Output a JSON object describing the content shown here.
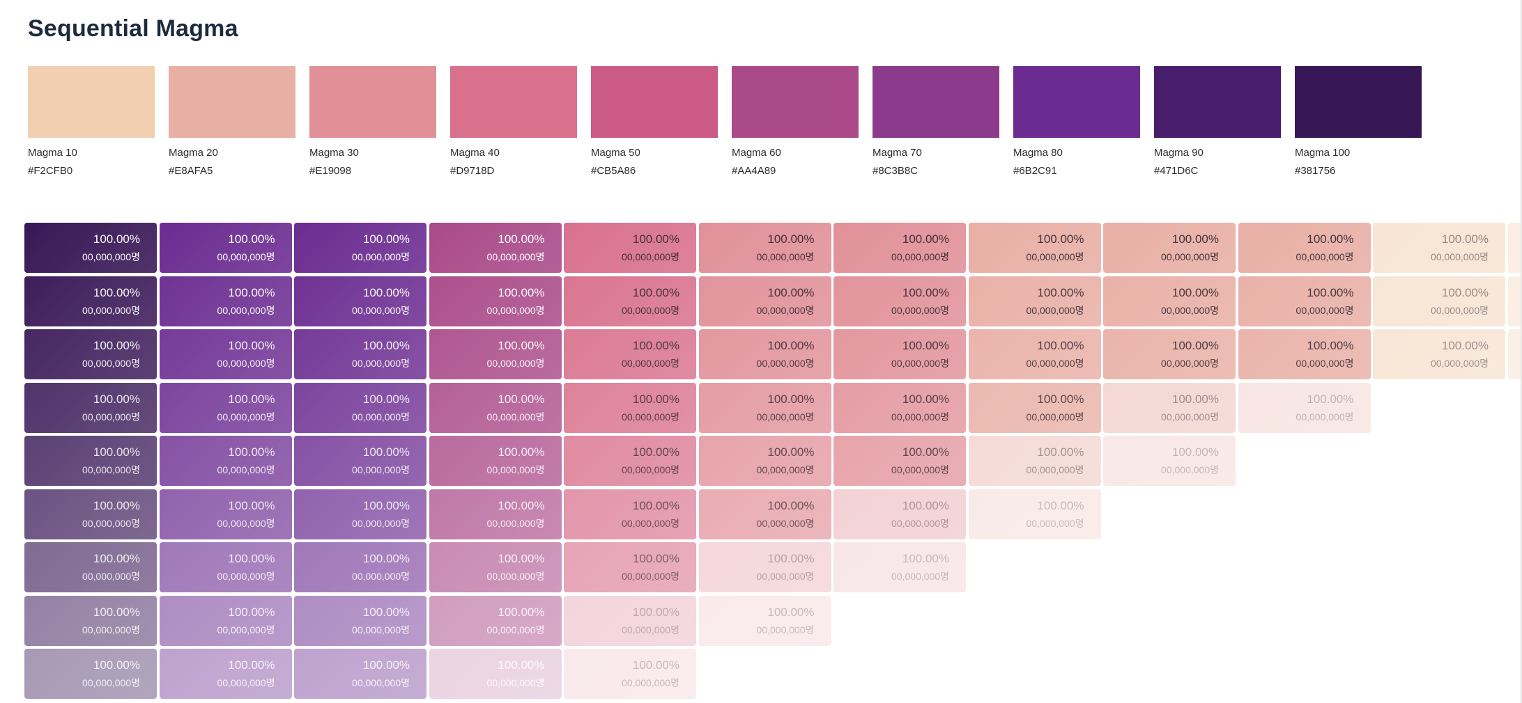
{
  "title": "Sequential Magma",
  "swatches": [
    {
      "name": "Magma 10",
      "hex": "#F2CFB0"
    },
    {
      "name": "Magma 20",
      "hex": "#E8AFA5"
    },
    {
      "name": "Magma 30",
      "hex": "#E19098"
    },
    {
      "name": "Magma 40",
      "hex": "#D9718D"
    },
    {
      "name": "Magma 50",
      "hex": "#CB5A86"
    },
    {
      "name": "Magma 60",
      "hex": "#AA4A89"
    },
    {
      "name": "Magma 70",
      "hex": "#8C3B8C"
    },
    {
      "name": "Magma 80",
      "hex": "#6B2C91"
    },
    {
      "name": "Magma 90",
      "hex": "#471D6C"
    },
    {
      "name": "Magma 100",
      "hex": "#381756"
    }
  ],
  "grid": {
    "percent_label": "100.00%",
    "count_label": "00,000,000명",
    "column_colors": [
      "#381756",
      "#6B2C91",
      "#6B2C91",
      "#AA4A89",
      "#D9718D",
      "#E19098",
      "#E19098",
      "#E8AFA5",
      "#E8AFA5",
      "#E8AFA5",
      "#F2CFB0",
      "#F2CFB0"
    ],
    "row_counts": [
      12,
      12,
      12,
      10,
      9,
      8,
      7,
      6,
      5
    ],
    "row_fades": [
      1.0,
      0.97,
      0.93,
      0.88,
      0.82,
      0.74,
      0.64,
      0.54,
      0.44
    ]
  }
}
